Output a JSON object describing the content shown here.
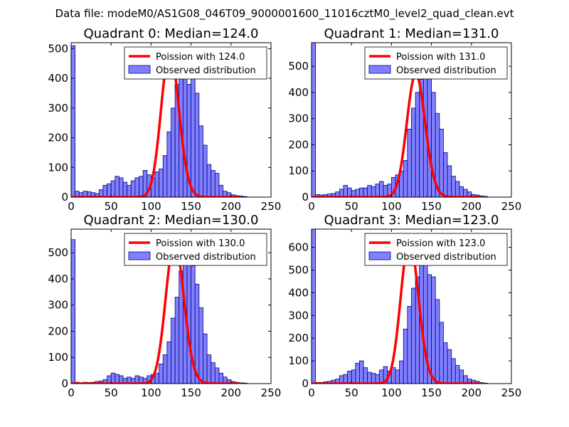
{
  "figure_title": "Data file: modeM0/AS1G08_046T09_9000001600_11016cztM0_level2_quad_clean.evt",
  "colors": {
    "hist_fill": "#8080ff",
    "hist_edge": "#000080",
    "poisson_line": "#ff0000",
    "background": "#ffffff"
  },
  "chart_data": [
    {
      "type": "bar",
      "title": "Quadrant 0: Median=124.0",
      "xlim": [
        0,
        250
      ],
      "ylim": [
        0,
        520
      ],
      "xticks": [
        "0",
        "50",
        "100",
        "150",
        "200",
        "250"
      ],
      "yticks": [
        "0",
        "100",
        "200",
        "300",
        "400",
        "500"
      ],
      "legend_position": "upper right",
      "bin_width": 5,
      "bin_start": 0,
      "series": [
        {
          "name": "Observed distribution",
          "type": "histogram",
          "values": [
            510,
            20,
            15,
            20,
            18,
            15,
            12,
            25,
            40,
            45,
            55,
            70,
            65,
            50,
            40,
            55,
            65,
            70,
            90,
            75,
            65,
            85,
            95,
            140,
            220,
            300,
            380,
            420,
            400,
            380,
            420,
            350,
            240,
            175,
            110,
            90,
            80,
            40,
            20,
            15,
            8,
            5,
            4,
            2,
            0,
            0,
            0,
            0,
            0,
            0
          ]
        },
        {
          "name": "Poission with 124.0",
          "type": "line",
          "median": 124.0,
          "peak": 490
        }
      ]
    },
    {
      "type": "bar",
      "title": "Quadrant 1: Median=131.0",
      "xlim": [
        0,
        250
      ],
      "ylim": [
        0,
        590
      ],
      "xticks": [
        "0",
        "50",
        "100",
        "150",
        "200",
        "250"
      ],
      "yticks": [
        "0",
        "100",
        "200",
        "300",
        "400",
        "500"
      ],
      "legend_position": "upper right",
      "bin_width": 5,
      "bin_start": 0,
      "series": [
        {
          "name": "Observed distribution",
          "type": "histogram",
          "values": [
            590,
            10,
            8,
            10,
            12,
            14,
            20,
            30,
            45,
            35,
            25,
            30,
            35,
            35,
            45,
            40,
            50,
            60,
            45,
            50,
            75,
            85,
            100,
            140,
            260,
            340,
            400,
            450,
            500,
            460,
            400,
            320,
            260,
            170,
            120,
            80,
            60,
            40,
            30,
            20,
            10,
            8,
            5,
            3,
            0,
            0,
            0,
            0,
            0,
            0
          ]
        },
        {
          "name": "Poission with 131.0",
          "type": "line",
          "median": 131.0,
          "peak": 470
        }
      ]
    },
    {
      "type": "bar",
      "title": "Quadrant 2: Median=130.0",
      "xlim": [
        0,
        250
      ],
      "ylim": [
        0,
        590
      ],
      "xticks": [
        "0",
        "50",
        "100",
        "150",
        "200",
        "250"
      ],
      "yticks": [
        "0",
        "100",
        "200",
        "300",
        "400",
        "500"
      ],
      "legend_position": "upper right",
      "bin_width": 5,
      "bin_start": 0,
      "series": [
        {
          "name": "Observed distribution",
          "type": "histogram",
          "values": [
            550,
            5,
            3,
            5,
            4,
            5,
            8,
            10,
            15,
            30,
            40,
            35,
            30,
            20,
            25,
            20,
            30,
            25,
            20,
            30,
            35,
            40,
            75,
            110,
            160,
            250,
            330,
            430,
            470,
            510,
            450,
            380,
            290,
            190,
            110,
            80,
            60,
            40,
            25,
            15,
            8,
            5,
            3,
            2,
            0,
            0,
            0,
            0,
            0,
            0
          ]
        },
        {
          "name": "Poission with 130.0",
          "type": "line",
          "median": 130.0,
          "peak": 540
        }
      ]
    },
    {
      "type": "bar",
      "title": "Quadrant 3: Median=123.0",
      "xlim": [
        0,
        250
      ],
      "ylim": [
        0,
        680
      ],
      "xticks": [
        "0",
        "50",
        "100",
        "150",
        "200",
        "250"
      ],
      "yticks": [
        "0",
        "100",
        "200",
        "300",
        "400",
        "500",
        "600"
      ],
      "legend_position": "upper right",
      "bin_width": 5,
      "bin_start": 0,
      "series": [
        {
          "name": "Observed distribution",
          "type": "histogram",
          "values": [
            680,
            5,
            5,
            8,
            10,
            15,
            20,
            35,
            40,
            55,
            60,
            90,
            100,
            70,
            50,
            45,
            40,
            60,
            75,
            55,
            70,
            60,
            100,
            240,
            340,
            420,
            470,
            590,
            550,
            480,
            470,
            370,
            270,
            180,
            150,
            110,
            80,
            60,
            35,
            20,
            15,
            10,
            5,
            2,
            0,
            0,
            0,
            0,
            0,
            0
          ]
        },
        {
          "name": "Poission with 123.0",
          "type": "line",
          "median": 123.0,
          "peak": 630
        }
      ]
    }
  ]
}
